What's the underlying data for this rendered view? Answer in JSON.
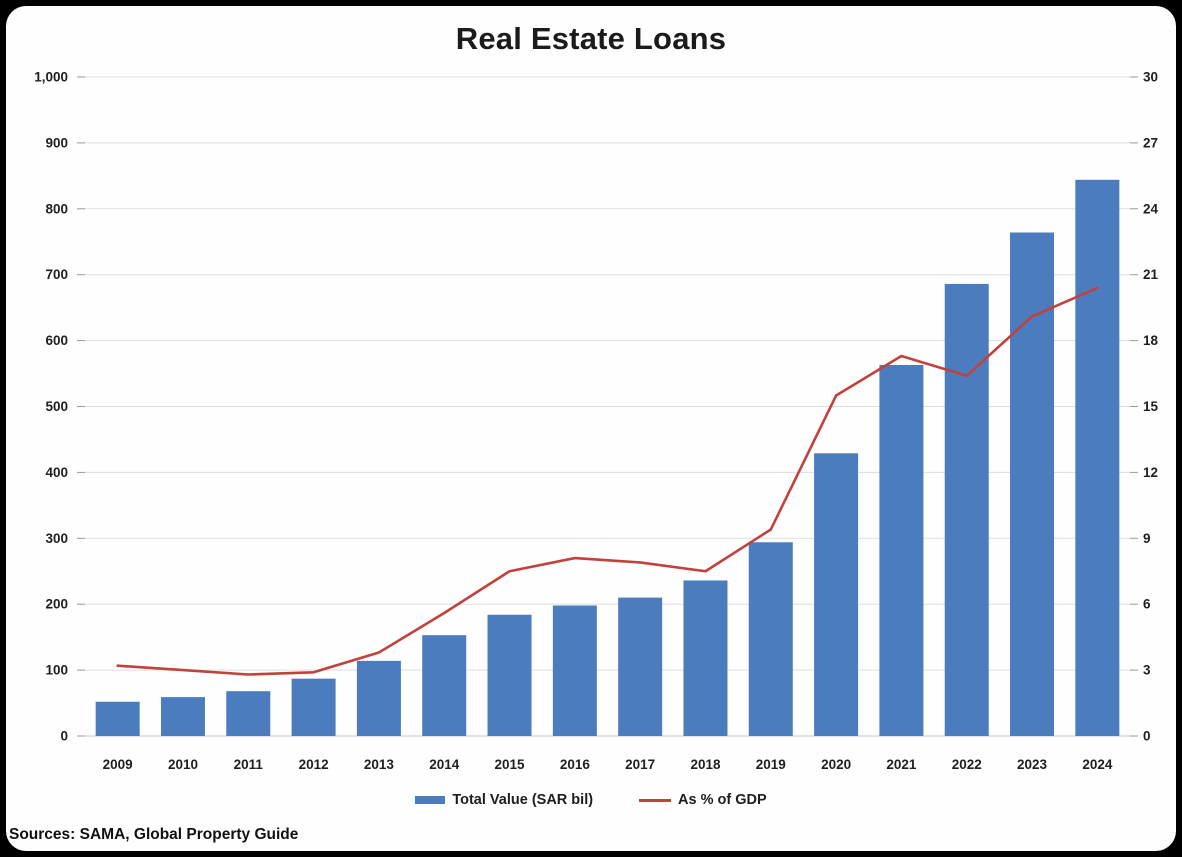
{
  "window": {
    "background_color": "#000000",
    "card_color": "#fefefe"
  },
  "chart": {
    "title": "Real Estate Loans",
    "source_note": "Sources: SAMA, Global Property Guide",
    "legend": [
      {
        "label": "Total Value (SAR bil)",
        "swatch": "bar-swatch",
        "color": "#4b7cbe"
      },
      {
        "label": "As % of GDP",
        "swatch": "line-swatch",
        "color": "#c2413c"
      }
    ]
  },
  "chart_data": {
    "type": "combo",
    "subtypes": [
      "bar",
      "line"
    ],
    "title": "Real Estate Loans",
    "categories": [
      "2009",
      "2010",
      "2011",
      "2012",
      "2013",
      "2014",
      "2015",
      "2016",
      "2017",
      "2018",
      "2019",
      "2020",
      "2021",
      "2022",
      "2023",
      "2024"
    ],
    "series": [
      {
        "name": "Total Value (SAR bil)",
        "type": "bar",
        "axis": "left",
        "color": "#4b7cbe",
        "values": [
          52,
          59,
          68,
          87,
          114,
          153,
          184,
          198,
          210,
          236,
          294,
          429,
          563,
          686,
          764,
          844
        ]
      },
      {
        "name": "As % of GDP",
        "type": "line",
        "axis": "right",
        "color": "#c2413c",
        "values": [
          3.2,
          3.0,
          2.8,
          2.9,
          3.8,
          5.6,
          7.5,
          8.1,
          7.9,
          7.5,
          9.4,
          15.5,
          17.3,
          16.4,
          19.1,
          20.4
        ]
      }
    ],
    "left_axis": {
      "min": 0,
      "max": 1000,
      "tick_step": 100,
      "tick_labels": [
        "0",
        "100",
        "200",
        "300",
        "400",
        "500",
        "600",
        "700",
        "800",
        "900",
        "1,000"
      ]
    },
    "right_axis": {
      "min": 0,
      "max": 30,
      "tick_step": 3,
      "tick_labels": [
        "0",
        "3",
        "6",
        "9",
        "12",
        "15",
        "18",
        "21",
        "24",
        "27",
        "30"
      ]
    },
    "grid": true,
    "gridline_color": "#dddddd",
    "baseline_color": "#c8c8c8",
    "tick_color": "#9a9a9a",
    "axis_text_color": "#1f1f1f",
    "legend_position": "bottom"
  }
}
